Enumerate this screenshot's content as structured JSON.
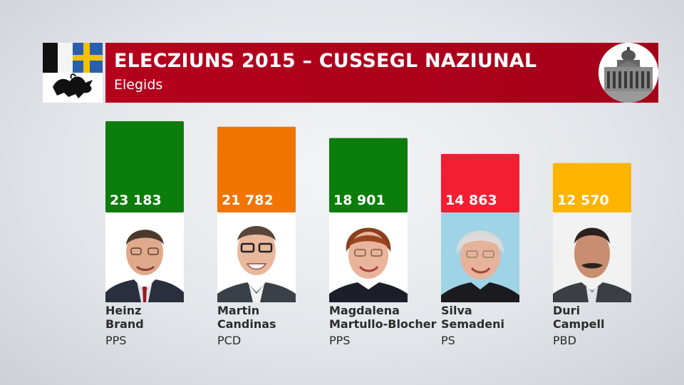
{
  "header": {
    "title": "ELECZIUNS 2015 – CUSSEGL NAZIUNAL",
    "subtitle": "Elegids"
  },
  "icons": {
    "crest": "graubuenden-coat-of-arms-icon",
    "parliament": "federal-palace-icon"
  },
  "colors": {
    "header_red": "#b5001c",
    "PPS": "#0b7d0b",
    "PCD": "#f17500",
    "PS": "#f41e33",
    "PBD": "#ffb400"
  },
  "chart_data": {
    "type": "bar",
    "categories": [
      "Heinz Brand",
      "Martin Candinas",
      "Magdalena Martullo-Blocher",
      "Silva Semadeni",
      "Duri Campell"
    ],
    "values": [
      23183,
      21782,
      18901,
      14863,
      12570
    ],
    "value_labels": [
      "23 183",
      "21 782",
      "18 901",
      "14 863",
      "12 570"
    ],
    "parties": [
      "PPS",
      "PCD",
      "PPS",
      "PS",
      "PBD"
    ],
    "bar_colors": [
      "#0b7d0b",
      "#f17500",
      "#0b7d0b",
      "#f41e33",
      "#ffb400"
    ],
    "title": "ELECZIUNS 2015 – CUSSEGL NAZIUNAL",
    "subtitle": "Elegids",
    "ylim": [
      0,
      23183
    ],
    "grid": false
  },
  "candidates": [
    {
      "first": "Heinz",
      "last": "Brand",
      "party": "PPS"
    },
    {
      "first": "Martin",
      "last": "Candinas",
      "party": "PCD"
    },
    {
      "first": "Magdalena",
      "last": "Martullo-Blocher",
      "party": "PPS"
    },
    {
      "first": "Silva",
      "last": "Semadeni",
      "party": "PS"
    },
    {
      "first": "Duri",
      "last": "Campell",
      "party": "PBD"
    }
  ]
}
